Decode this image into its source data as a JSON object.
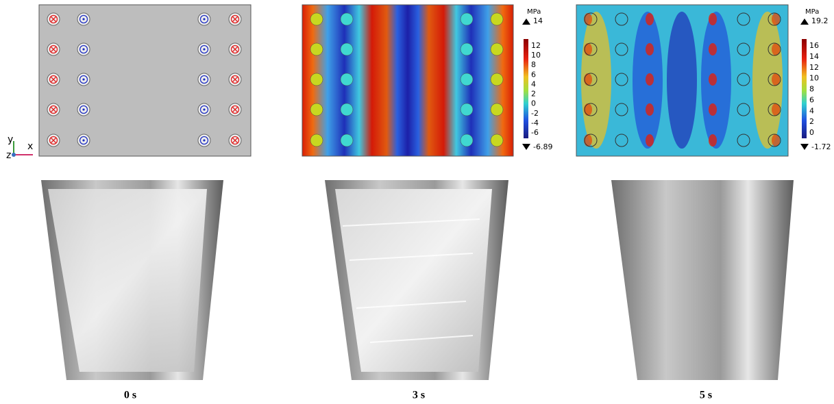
{
  "axes_triad": {
    "y": "y",
    "z": "z",
    "x": "x"
  },
  "panels": [
    {
      "caption": "0 s"
    },
    {
      "caption": "3 s",
      "unit": "MPa",
      "max": 14,
      "min": -6.89,
      "colorbar_ticks": [
        12,
        10,
        8,
        6,
        4,
        2,
        0,
        -2,
        -4,
        -6
      ]
    },
    {
      "caption": "5 s",
      "unit": "MPa",
      "max": 19.2,
      "min": -1.72,
      "colorbar_ticks": [
        16,
        14,
        12,
        10,
        8,
        6,
        4,
        2,
        0
      ]
    }
  ]
}
